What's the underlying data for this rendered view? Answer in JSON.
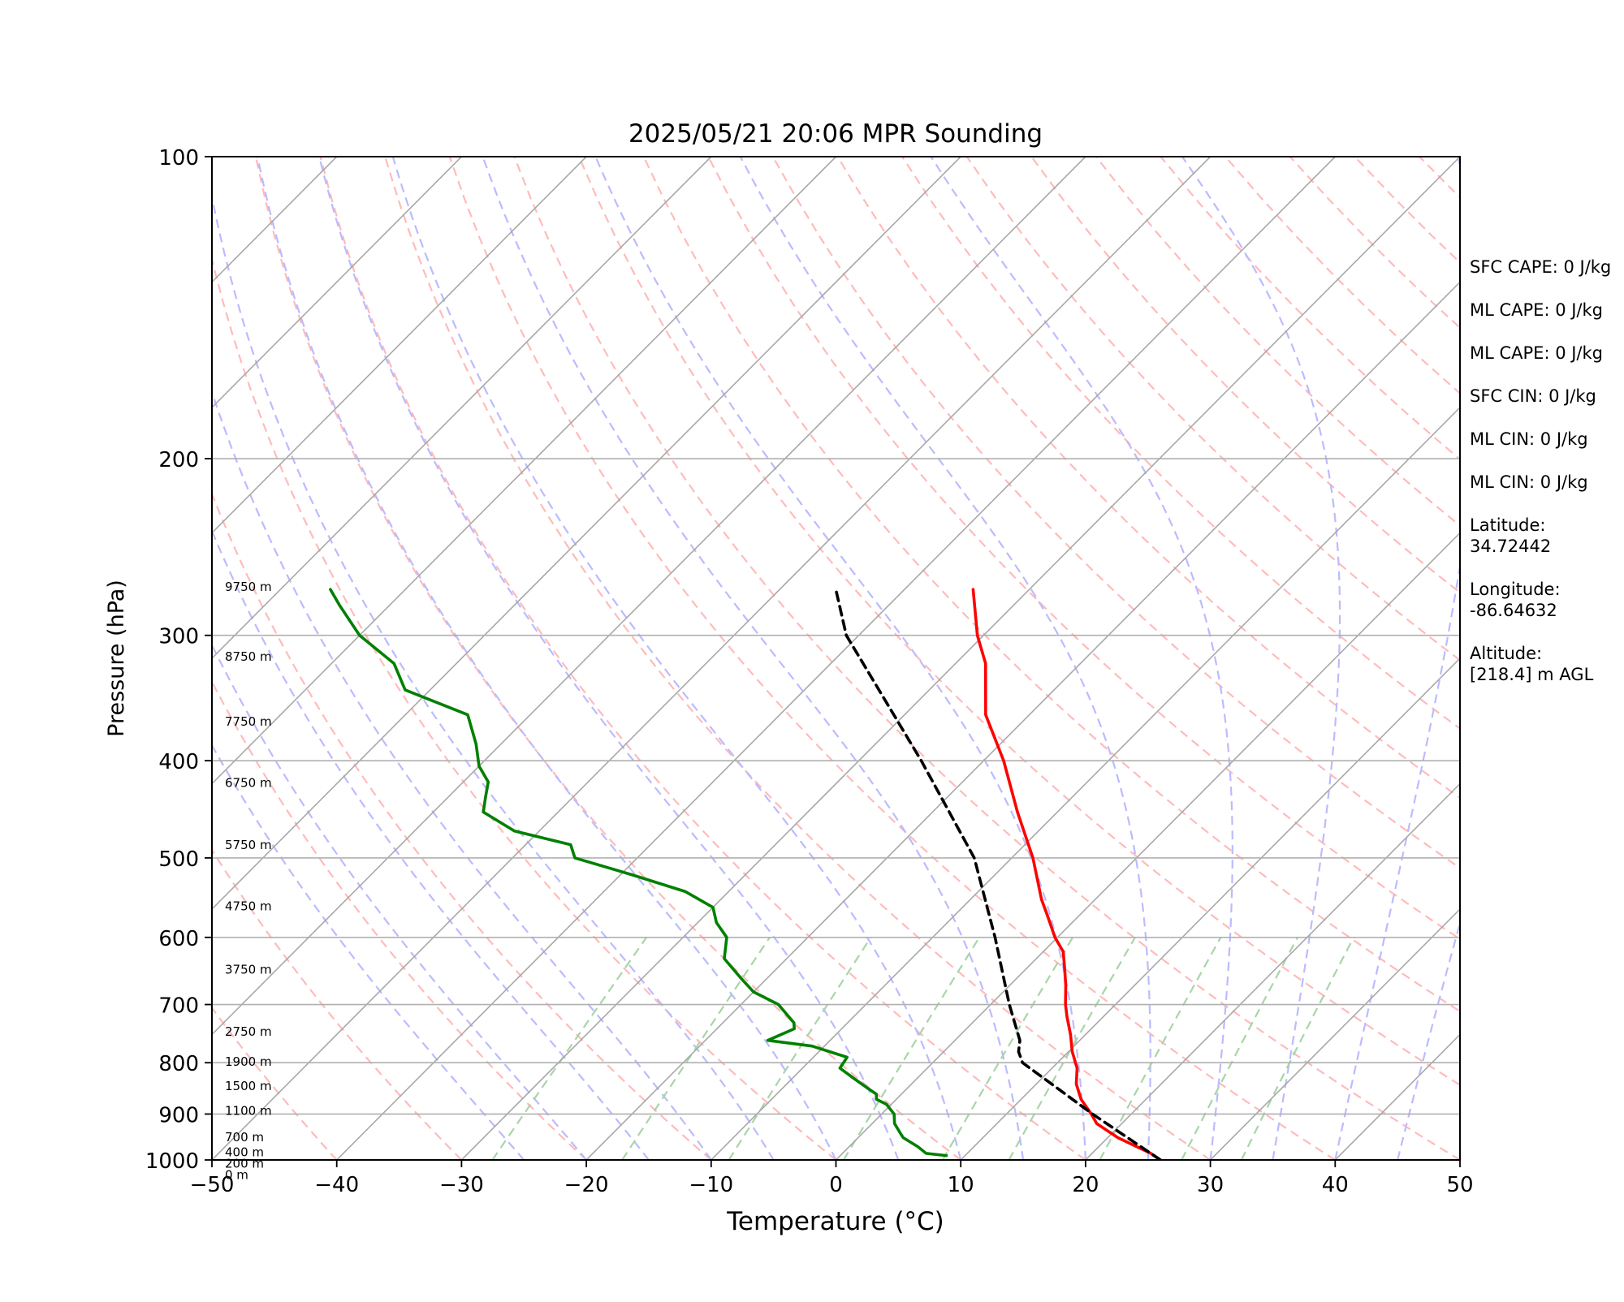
{
  "chart_data": {
    "type": "line",
    "subtype": "skew-t log-p sounding",
    "title": "2025/05/21 20:06 MPR Sounding",
    "xlabel": "Temperature (°C)",
    "ylabel": "Pressure (hPa)",
    "xlim": [
      -50,
      50
    ],
    "ylim": [
      1000,
      100
    ],
    "y_scale": "log",
    "x_ticks": [
      "−50",
      "−40",
      "−30",
      "−20",
      "−10",
      "0",
      "10",
      "20",
      "30",
      "40",
      "50"
    ],
    "y_ticks": [
      "100",
      "200",
      "300",
      "400",
      "500",
      "600",
      "700",
      "800",
      "900",
      "1000"
    ],
    "grid": true,
    "series": [
      {
        "role": "temperature",
        "color": "#ff0000",
        "pressure": [
          1000,
          985,
          950,
          920,
          900,
          870,
          840,
          810,
          780,
          750,
          720,
          700,
          670,
          640,
          620,
          600,
          570,
          550,
          500,
          450,
          400,
          360,
          320,
          300,
          270
        ],
        "value": [
          26.0,
          24.7,
          20.8,
          18.0,
          16.8,
          14.8,
          13.2,
          12.0,
          10.3,
          8.8,
          7.1,
          6.0,
          4.5,
          2.8,
          1.6,
          -0.2,
          -2.6,
          -4.3,
          -8.3,
          -13.2,
          -18.4,
          -23.5,
          -27.6,
          -30.5,
          -34.5
        ]
      },
      {
        "role": "dewpoint",
        "color": "#008000",
        "pressure": [
          990,
          985,
          970,
          950,
          940,
          920,
          900,
          880,
          870,
          860,
          850,
          830,
          810,
          790,
          770,
          760,
          740,
          730,
          700,
          680,
          660,
          630,
          600,
          580,
          560,
          540,
          520,
          500,
          485,
          470,
          450,
          435,
          420,
          405,
          385,
          360,
          340,
          320,
          300,
          280,
          270
        ],
        "value": [
          8.5,
          6.7,
          5.5,
          3.6,
          3.0,
          1.8,
          1.0,
          -0.4,
          -1.6,
          -2.0,
          -3.0,
          -5.0,
          -7.0,
          -7.3,
          -11.0,
          -15.0,
          -13.8,
          -14.3,
          -17.0,
          -20.0,
          -22.0,
          -25.0,
          -26.5,
          -28.5,
          -30.0,
          -33.5,
          -39.0,
          -45.0,
          -46.4,
          -52.0,
          -56.0,
          -57.0,
          -58.0,
          -60.0,
          -62.0,
          -65.0,
          -72.0,
          -75.0,
          -80.0,
          -84.0,
          -86.0
        ]
      },
      {
        "role": "parcel profile",
        "color": "#000000",
        "pressure": [
          1000,
          900,
          800,
          780,
          760,
          700,
          600,
          500,
          400,
          300,
          270
        ],
        "value": [
          26.0,
          16.9,
          7.2,
          6.0,
          5.2,
          1.5,
          -5.0,
          -13.0,
          -25.0,
          -41.0,
          -45.5
        ]
      }
    ],
    "height_labels": [
      "9750 m",
      "8750 m",
      "7750 m",
      "6750 m",
      "5750 m",
      "4750 m",
      "3750 m",
      "2750 m",
      "1900 m",
      "1500 m",
      "1100 m",
      "700 m",
      "400 m",
      "200 m",
      "0 m"
    ],
    "height_label_pressures": [
      271,
      318,
      369,
      425,
      490,
      564,
      652,
      752,
      806,
      852,
      902,
      958,
      992,
      1018,
      1045
    ],
    "background_lines": {
      "isotherms_color": "#a8a8a8",
      "dry_adiabats_color": "#ffbbbb",
      "moist_adiabats_color": "#bbbbff",
      "mixing_ratio_color": "#a8d5a8"
    }
  },
  "side_panel": {
    "entries": [
      "SFC CAPE: 0 J/kg",
      "ML CAPE: 0 J/kg",
      "ML CAPE: 0 J/kg",
      "SFC CIN: 0 J/kg",
      "ML CIN: 0 J/kg",
      "ML CIN: 0 J/kg",
      "Latitude:\n34.72442",
      "Longitude:\n-86.64632",
      "Altitude:\n[218.4] m AGL"
    ]
  }
}
